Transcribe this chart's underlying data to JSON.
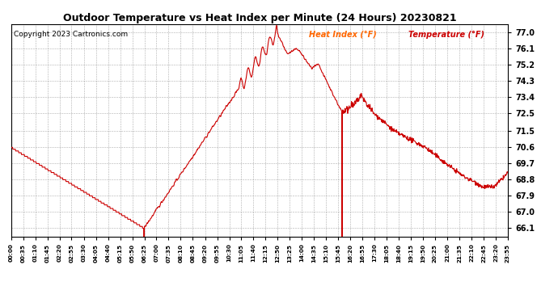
{
  "title": "Outdoor Temperature vs Heat Index per Minute (24 Hours) 20230821",
  "copyright": "Copyright 2023 Cartronics.com",
  "legend_heat": "Heat Index (°F)",
  "legend_temp": "Temperature (°F)",
  "legend_heat_color": "#ff6600",
  "legend_temp_color": "#cc0000",
  "line_color": "#cc0000",
  "background_color": "#ffffff",
  "grid_color": "#999999",
  "title_color": "#000000",
  "copyright_color": "#000000",
  "y_ticks": [
    66.1,
    67.0,
    67.9,
    68.8,
    69.7,
    70.6,
    71.5,
    72.5,
    73.4,
    74.3,
    75.2,
    76.1,
    77.0
  ],
  "ylim": [
    65.65,
    77.45
  ],
  "x_tick_labels": [
    "00:00",
    "00:35",
    "01:10",
    "01:45",
    "02:20",
    "02:55",
    "03:30",
    "04:05",
    "04:40",
    "05:15",
    "05:50",
    "06:25",
    "07:00",
    "07:35",
    "08:10",
    "08:45",
    "09:20",
    "09:55",
    "10:30",
    "11:05",
    "11:40",
    "12:15",
    "12:50",
    "13:25",
    "14:00",
    "14:35",
    "15:10",
    "15:45",
    "16:20",
    "16:55",
    "17:30",
    "18:05",
    "18:40",
    "19:15",
    "19:50",
    "20:25",
    "21:00",
    "21:35",
    "22:10",
    "22:45",
    "23:20",
    "23:55"
  ],
  "num_minutes": 1440
}
